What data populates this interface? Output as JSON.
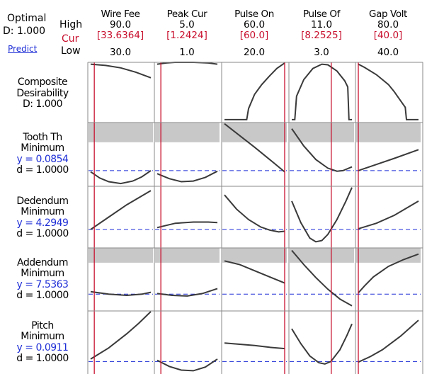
{
  "header": {
    "optimal_label": "Optimal",
    "d_label": "D: 1.000",
    "predict_label": "Predict",
    "high_label": "High",
    "cur_label": "Cur",
    "low_label": "Low"
  },
  "colors": {
    "cur_line": "#c8102e",
    "curve": "#3a3a3a",
    "target_dashed": "#1f2fd6",
    "grey_band": "#c8c8c8",
    "frame": "#8a8a8a"
  },
  "chart_data": {
    "type": "line",
    "factors": [
      {
        "name": "Wire Fee",
        "high": "90.0",
        "cur": "[33.6364]",
        "low": "30.0",
        "min": 30.0,
        "max": 90.0,
        "cur_value": 33.6364
      },
      {
        "name": "Peak Cur",
        "high": "5.0",
        "cur": "[1.2424]",
        "low": "1.0",
        "min": 1.0,
        "max": 5.0,
        "cur_value": 1.2424
      },
      {
        "name": "Pulse On",
        "high": "60.0",
        "cur": "[60.0]",
        "low": "20.0",
        "min": 20.0,
        "max": 60.0,
        "cur_value": 60.0
      },
      {
        "name": "Pulse Of",
        "high": "11.0",
        "cur": "[8.2525]",
        "low": "3.0",
        "min": 3.0,
        "max": 11.0,
        "cur_value": 8.2525
      },
      {
        "name": "Gap Volt",
        "high": "80.0",
        "cur": "[40.0]",
        "low": "40.0",
        "min": 40.0,
        "max": 80.0,
        "cur_value": 40.0
      }
    ],
    "responses": [
      {
        "lines": [
          "Composite",
          "Desirability",
          "D: 1.000"
        ],
        "blue_lines": [],
        "grey_band": null,
        "target": null,
        "curves": [
          [
            [
              0,
              0.97
            ],
            [
              0.25,
              0.95
            ],
            [
              0.5,
              0.91
            ],
            [
              0.75,
              0.84
            ],
            [
              1,
              0.75
            ]
          ],
          [
            [
              0,
              0.97
            ],
            [
              0.15,
              0.99
            ],
            [
              0.3,
              1.0
            ],
            [
              0.6,
              1.0
            ],
            [
              0.85,
              0.99
            ],
            [
              1,
              0.97
            ]
          ],
          [
            [
              0,
              0.07
            ],
            [
              0.37,
              0.07
            ],
            [
              0.4,
              0.25
            ],
            [
              0.5,
              0.48
            ],
            [
              0.62,
              0.64
            ],
            [
              0.75,
              0.78
            ],
            [
              0.87,
              0.9
            ],
            [
              1,
              0.99
            ]
          ],
          [
            [
              0,
              0.07
            ],
            [
              0.05,
              0.07
            ],
            [
              0.08,
              0.45
            ],
            [
              0.2,
              0.72
            ],
            [
              0.35,
              0.9
            ],
            [
              0.5,
              0.97
            ],
            [
              0.6,
              0.96
            ],
            [
              0.75,
              0.86
            ],
            [
              0.88,
              0.7
            ],
            [
              0.93,
              0.6
            ],
            [
              0.95,
              0.07
            ],
            [
              1,
              0.07
            ]
          ],
          [
            [
              0,
              0.97
            ],
            [
              0.1,
              0.92
            ],
            [
              0.3,
              0.8
            ],
            [
              0.5,
              0.64
            ],
            [
              0.6,
              0.52
            ],
            [
              0.7,
              0.38
            ],
            [
              0.78,
              0.27
            ],
            [
              0.8,
              0.07
            ],
            [
              1,
              0.07
            ]
          ]
        ]
      },
      {
        "lines": [
          "Tooth Th",
          "Minimum"
        ],
        "blue_lines": [
          "y = 0.0854"
        ],
        "trailing_lines": [
          "d = 1.0000"
        ],
        "grey_band": [
          0.68,
          1.0
        ],
        "target": 0.22,
        "curves": [
          [
            [
              0,
              0.2
            ],
            [
              0.15,
              0.1
            ],
            [
              0.3,
              0.04
            ],
            [
              0.5,
              0.01
            ],
            [
              0.7,
              0.05
            ],
            [
              0.85,
              0.12
            ],
            [
              1,
              0.22
            ]
          ],
          [
            [
              0,
              0.17
            ],
            [
              0.2,
              0.09
            ],
            [
              0.4,
              0.04
            ],
            [
              0.6,
              0.05
            ],
            [
              0.8,
              0.11
            ],
            [
              1,
              0.21
            ]
          ],
          [
            [
              0,
              0.98
            ],
            [
              0.25,
              0.79
            ],
            [
              0.5,
              0.6
            ],
            [
              0.75,
              0.4
            ],
            [
              1,
              0.2
            ]
          ],
          [
            [
              0,
              0.9
            ],
            [
              0.2,
              0.62
            ],
            [
              0.4,
              0.4
            ],
            [
              0.6,
              0.26
            ],
            [
              0.75,
              0.21
            ],
            [
              0.85,
              0.22
            ],
            [
              1,
              0.28
            ]
          ],
          [
            [
              0,
              0.22
            ],
            [
              0.3,
              0.32
            ],
            [
              0.6,
              0.42
            ],
            [
              1,
              0.56
            ]
          ]
        ]
      },
      {
        "lines": [
          "Dedendum",
          "Minimum"
        ],
        "blue_lines": [
          "y = 4.2949"
        ],
        "trailing_lines": [
          "d = 1.0000"
        ],
        "grey_band": null,
        "target": 0.3,
        "curves": [
          [
            [
              0,
              0.3
            ],
            [
              0.3,
              0.5
            ],
            [
              0.6,
              0.7
            ],
            [
              1,
              0.93
            ]
          ],
          [
            [
              0,
              0.33
            ],
            [
              0.3,
              0.4
            ],
            [
              0.6,
              0.42
            ],
            [
              0.85,
              0.42
            ],
            [
              1,
              0.41
            ]
          ],
          [
            [
              0,
              0.86
            ],
            [
              0.2,
              0.63
            ],
            [
              0.4,
              0.46
            ],
            [
              0.6,
              0.34
            ],
            [
              0.75,
              0.29
            ],
            [
              0.9,
              0.26
            ],
            [
              1,
              0.27
            ]
          ],
          [
            [
              0,
              0.76
            ],
            [
              0.15,
              0.41
            ],
            [
              0.3,
              0.16
            ],
            [
              0.4,
              0.1
            ],
            [
              0.5,
              0.12
            ],
            [
              0.6,
              0.22
            ],
            [
              0.75,
              0.46
            ],
            [
              0.9,
              0.76
            ],
            [
              1,
              0.98
            ]
          ],
          [
            [
              0,
              0.31
            ],
            [
              0.3,
              0.4
            ],
            [
              0.6,
              0.53
            ],
            [
              1,
              0.76
            ]
          ]
        ]
      },
      {
        "lines": [
          "Addendum",
          "Minimum"
        ],
        "blue_lines": [
          "y = 7.5363"
        ],
        "trailing_lines": [
          "d = 1.0000"
        ],
        "grey_band": [
          0.76,
          1.0
        ],
        "target": 0.25,
        "curves": [
          [
            [
              0,
              0.29
            ],
            [
              0.3,
              0.25
            ],
            [
              0.6,
              0.23
            ],
            [
              0.85,
              0.25
            ],
            [
              1,
              0.28
            ]
          ],
          [
            [
              0,
              0.26
            ],
            [
              0.25,
              0.23
            ],
            [
              0.5,
              0.22
            ],
            [
              0.75,
              0.26
            ],
            [
              1,
              0.34
            ]
          ],
          [
            [
              0,
              0.79
            ],
            [
              0.25,
              0.73
            ],
            [
              0.5,
              0.63
            ],
            [
              0.75,
              0.53
            ],
            [
              1,
              0.43
            ]
          ],
          [
            [
              0,
              0.96
            ],
            [
              0.2,
              0.73
            ],
            [
              0.4,
              0.52
            ],
            [
              0.6,
              0.33
            ],
            [
              0.8,
              0.17
            ],
            [
              1,
              0.06
            ]
          ],
          [
            [
              0,
              0.27
            ],
            [
              0.1,
              0.38
            ],
            [
              0.25,
              0.53
            ],
            [
              0.5,
              0.7
            ],
            [
              0.75,
              0.81
            ],
            [
              1,
              0.9
            ]
          ]
        ]
      },
      {
        "lines": [
          "Pitch",
          "Minimum"
        ],
        "blue_lines": [
          "y = 0.0911"
        ],
        "trailing_lines": [
          "d = 1.0000"
        ],
        "grey_band": null,
        "target": 0.18,
        "curves": [
          [
            [
              0,
              0.22
            ],
            [
              0.3,
              0.4
            ],
            [
              0.6,
              0.63
            ],
            [
              0.8,
              0.8
            ],
            [
              1,
              0.99
            ]
          ],
          [
            [
              0,
              0.2
            ],
            [
              0.2,
              0.1
            ],
            [
              0.4,
              0.04
            ],
            [
              0.6,
              0.03
            ],
            [
              0.8,
              0.09
            ],
            [
              1,
              0.22
            ]
          ],
          [
            [
              0,
              0.48
            ],
            [
              0.25,
              0.46
            ],
            [
              0.5,
              0.44
            ],
            [
              0.75,
              0.41
            ],
            [
              1,
              0.39
            ]
          ],
          [
            [
              0,
              0.71
            ],
            [
              0.15,
              0.47
            ],
            [
              0.3,
              0.27
            ],
            [
              0.45,
              0.16
            ],
            [
              0.55,
              0.14
            ],
            [
              0.65,
              0.18
            ],
            [
              0.8,
              0.37
            ],
            [
              0.92,
              0.61
            ],
            [
              1,
              0.79
            ]
          ],
          [
            [
              0,
              0.17
            ],
            [
              0.2,
              0.26
            ],
            [
              0.4,
              0.37
            ],
            [
              0.7,
              0.59
            ],
            [
              1,
              0.85
            ]
          ]
        ]
      }
    ]
  }
}
